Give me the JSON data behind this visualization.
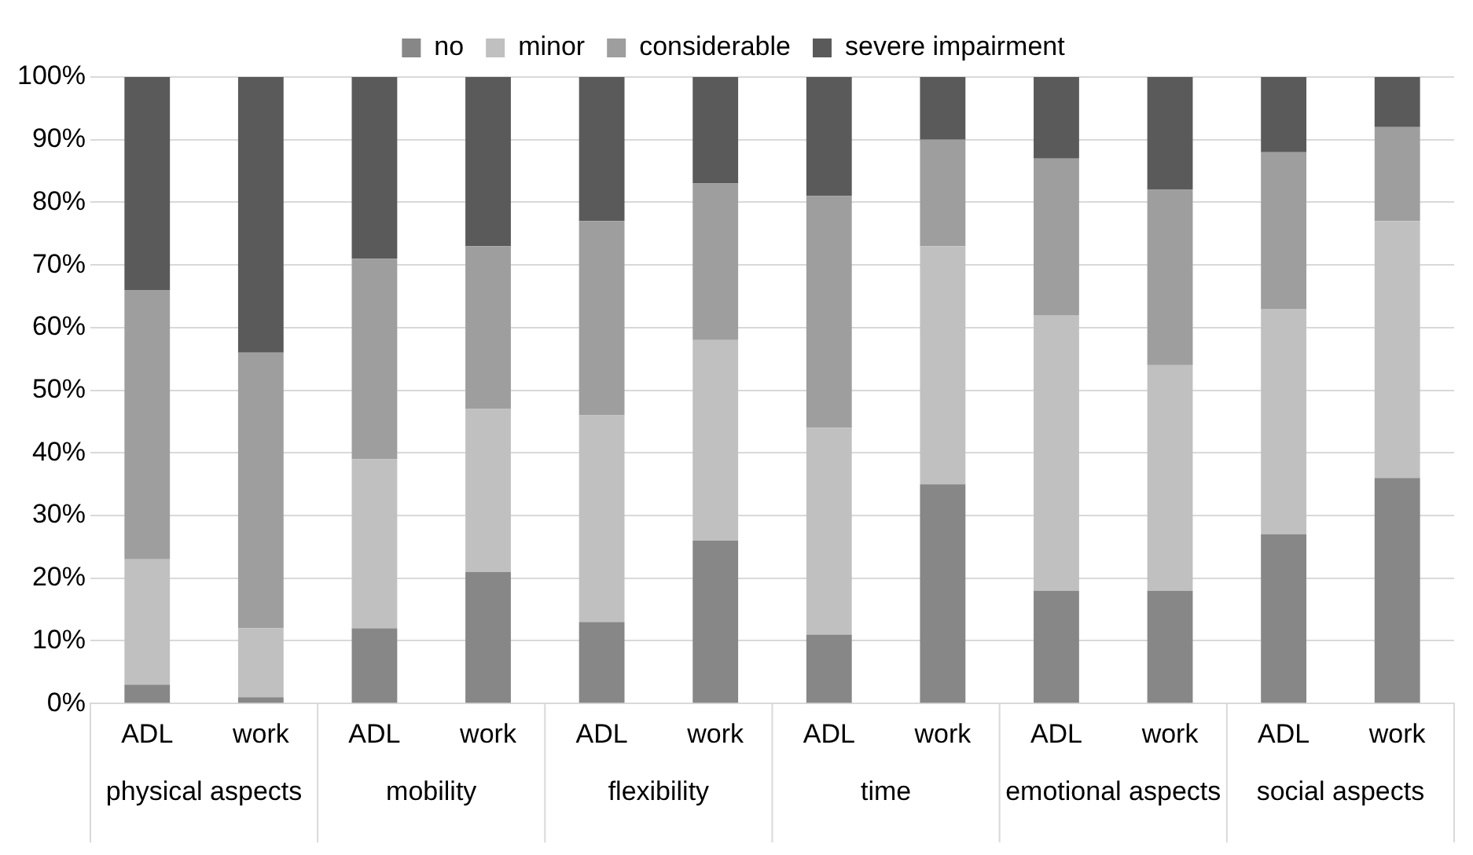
{
  "chart_data": {
    "type": "bar",
    "stacked": true,
    "categories": [
      "ADL",
      "work",
      "ADL",
      "work",
      "ADL",
      "work",
      "ADL",
      "work",
      "ADL",
      "work",
      "ADL",
      "work"
    ],
    "series": [
      {
        "name": "no",
        "color": "#878787",
        "values": [
          3,
          1,
          12,
          21,
          13,
          26,
          11,
          35,
          18,
          18,
          27,
          36
        ]
      },
      {
        "name": "minor",
        "color": "#c0c0c0",
        "values": [
          20,
          11,
          27,
          26,
          33,
          32,
          33,
          38,
          44,
          36,
          36,
          41
        ]
      },
      {
        "name": "considerable",
        "color": "#9e9e9e",
        "values": [
          43,
          44,
          32,
          26,
          31,
          25,
          37,
          17,
          25,
          28,
          25,
          15
        ]
      },
      {
        "name": "severe impairment",
        "color": "#5a5a5a",
        "values": [
          34,
          44,
          29,
          27,
          23,
          17,
          19,
          10,
          13,
          18,
          12,
          8
        ]
      }
    ],
    "ylim": [
      0,
      100
    ],
    "yticks": [
      {
        "value": 0,
        "label": "0%"
      },
      {
        "value": 10,
        "label": "10%"
      },
      {
        "value": 20,
        "label": "20%"
      },
      {
        "value": 30,
        "label": "30%"
      },
      {
        "value": 40,
        "label": "40%"
      },
      {
        "value": 50,
        "label": "50%"
      },
      {
        "value": 60,
        "label": "60%"
      },
      {
        "value": 70,
        "label": "70%"
      },
      {
        "value": 80,
        "label": "80%"
      },
      {
        "value": 90,
        "label": "90%"
      },
      {
        "value": 100,
        "label": "100%"
      }
    ],
    "grid": "y",
    "legend": "top",
    "annotations": [
      "physical aspects",
      "mobility",
      "flexibility",
      "time",
      "emotional aspects",
      "social aspects"
    ]
  }
}
